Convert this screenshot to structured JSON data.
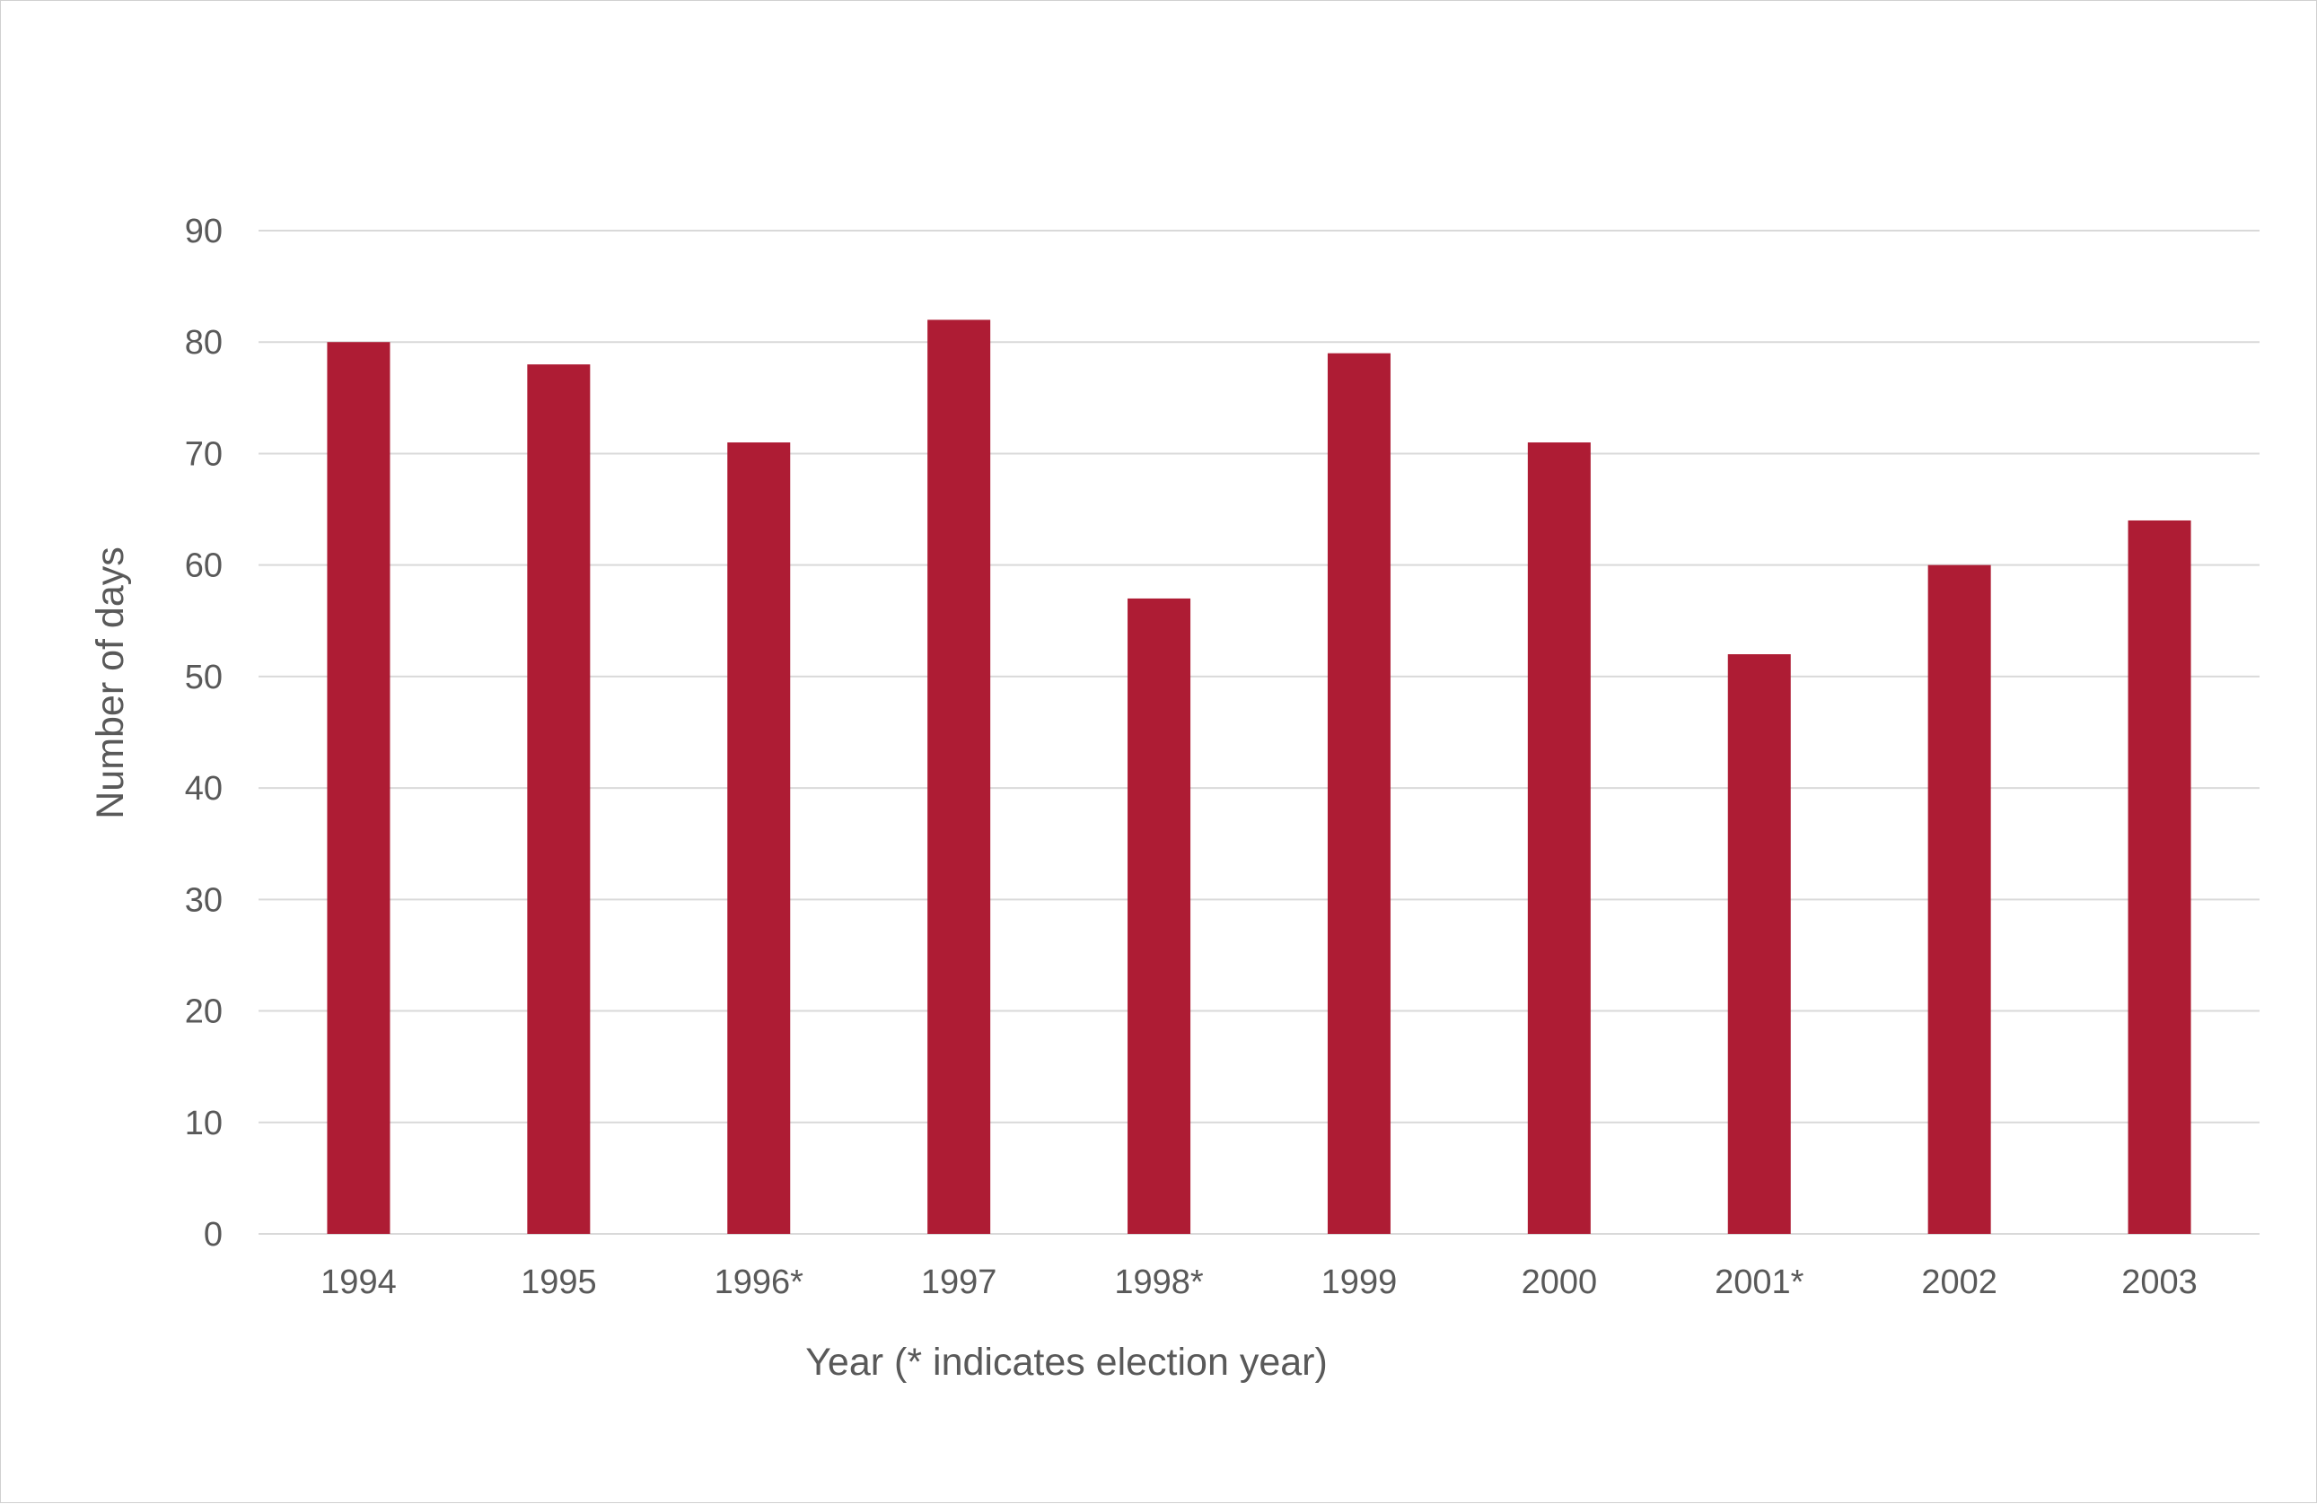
{
  "chart_data": {
    "type": "bar",
    "title": "",
    "xlabel": "Year (* indicates election year)",
    "ylabel": "Number of days",
    "categories": [
      "1994",
      "1995",
      "1996*",
      "1997",
      "1998*",
      "1999",
      "2000",
      "2001*",
      "2002",
      "2003"
    ],
    "values": [
      80,
      78,
      71,
      82,
      57,
      79,
      71,
      52,
      60,
      64
    ],
    "ylim": [
      0,
      90
    ],
    "yticks": [
      0,
      10,
      20,
      30,
      40,
      50,
      60,
      70,
      80,
      90
    ],
    "grid": true,
    "legend": "none",
    "bar_color": "#AE1C34",
    "grid_color": "#D9D9D9"
  }
}
